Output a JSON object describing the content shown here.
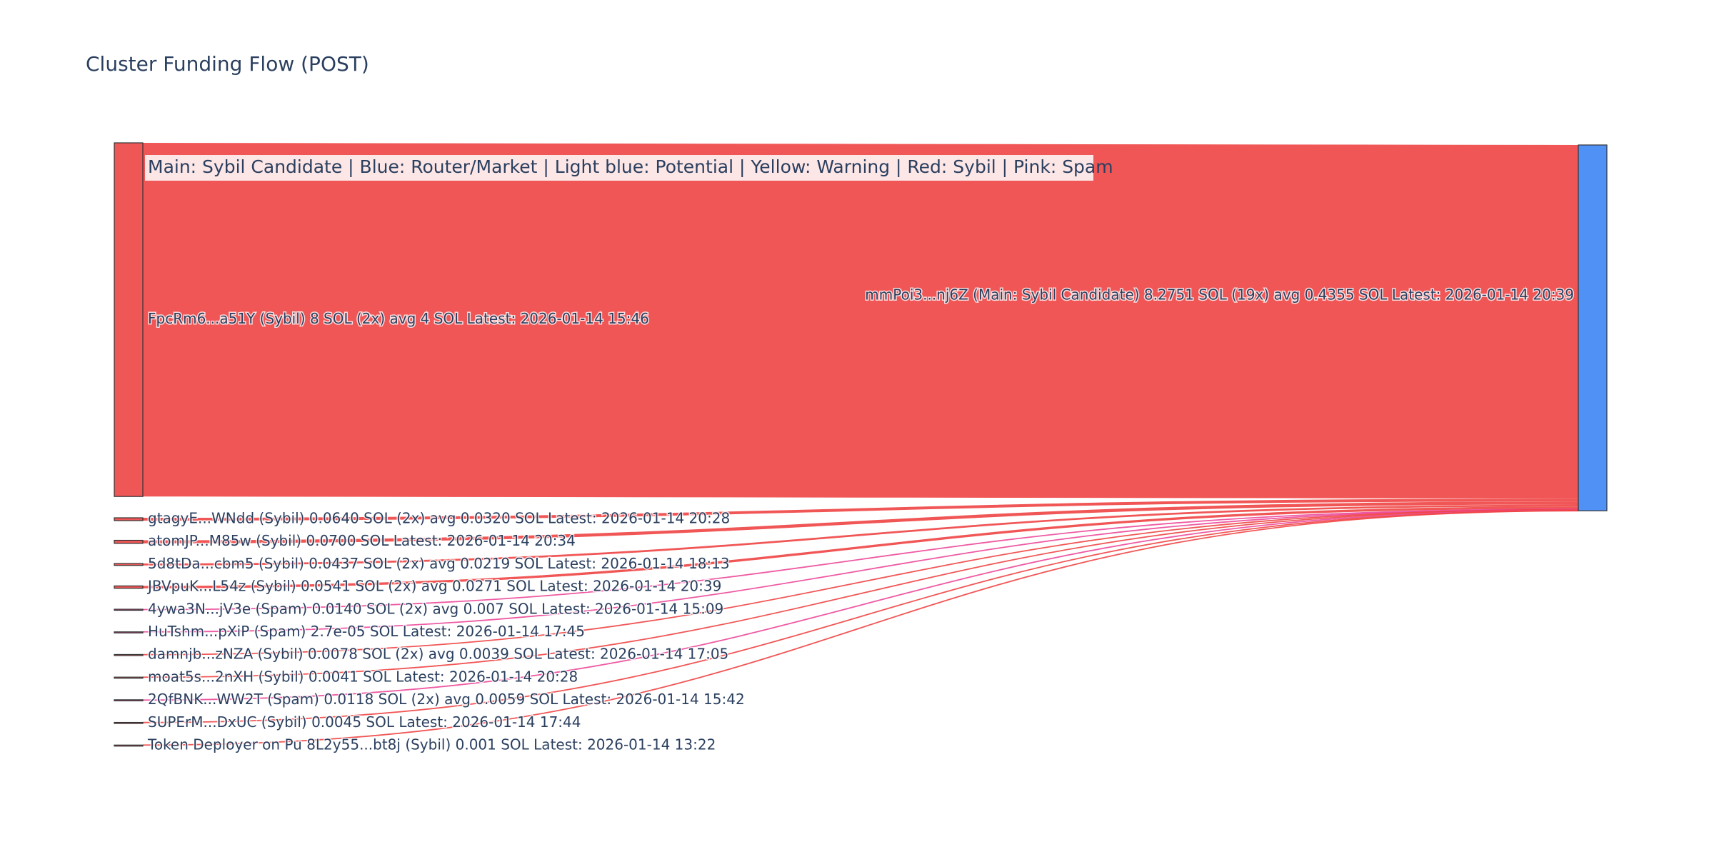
{
  "chart_data": {
    "type": "sankey",
    "title": "Cluster Funding Flow (POST)",
    "annotation": "Main: Sybil Candidate  |  Blue: Router/Market | Light blue: Potential | Yellow: Warning | Red: Sybil | Pink: Spam",
    "nodes": [
      {
        "label": "FpcRm6...a51Y (Sybil) 8 SOL (2x) avg 4 SOL Latest: 2026-01-14 15:46",
        "color": "#ef5656"
      },
      {
        "label": "gtagyE...WNdd (Sybil) 0.0640 SOL (2x) avg 0.0320 SOL Latest: 2026-01-14 20:28",
        "color": "#ef5656"
      },
      {
        "label": "atomJP...M85w (Sybil) 0.0700 SOL Latest: 2026-01-14 20:34",
        "color": "#ef5656"
      },
      {
        "label": "5d8tDa...cbm5 (Sybil) 0.0437 SOL (2x) avg 0.0219 SOL Latest: 2026-01-14 18:13",
        "color": "#ef5656"
      },
      {
        "label": "JBVpuK...L54z (Sybil) 0.0541 SOL (2x) avg 0.0271 SOL Latest: 2026-01-14 20:39",
        "color": "#ef5656"
      },
      {
        "label": "4ywa3N...jV3e (Spam) 0.0140 SOL (2x) avg 0.007 SOL Latest: 2026-01-14 15:09",
        "color": "#e8479b"
      },
      {
        "label": "HuTshm...pXiP (Spam) 2.7e-05 SOL Latest: 2026-01-14 17:45",
        "color": "#e8479b"
      },
      {
        "label": "damnjb...zNZA (Sybil) 0.0078 SOL (2x) avg 0.0039 SOL Latest: 2026-01-14 17:05",
        "color": "#ef5656"
      },
      {
        "label": "moat5s...2nXH (Sybil) 0.0041 SOL Latest: 2026-01-14 20:28",
        "color": "#ef5656"
      },
      {
        "label": "2QfBNK...WW2T (Spam) 0.0118 SOL (2x) avg 0.0059 SOL Latest: 2026-01-14 15:42",
        "color": "#e8479b"
      },
      {
        "label": "SUPErM...DxUC (Sybil) 0.0045 SOL Latest: 2026-01-14 17:44",
        "color": "#ef5656"
      },
      {
        "label": "Token Deployer on Pu 8L2y55...bt8j (Sybil) 0.001 SOL Latest: 2026-01-14 13:22",
        "color": "#ef5656"
      },
      {
        "label": "mmPoi3...nj6Z (Main: Sybil Candidate) 8.2751 SOL (19x) avg 0.4355 SOL Latest: 2026-01-14 20:39",
        "color": "#5091f5"
      }
    ],
    "links": [
      {
        "source": 0,
        "target": 12,
        "value": 8,
        "color": "#ef4444"
      },
      {
        "source": 1,
        "target": 12,
        "value": 0.064,
        "color": "#ef4444"
      },
      {
        "source": 2,
        "target": 12,
        "value": 0.07,
        "color": "#ef4444"
      },
      {
        "source": 3,
        "target": 12,
        "value": 0.0437,
        "color": "#ef4444"
      },
      {
        "source": 4,
        "target": 12,
        "value": 0.0541,
        "color": "#ef4444"
      },
      {
        "source": 5,
        "target": 12,
        "value": 0.014,
        "color": "#ec4899"
      },
      {
        "source": 6,
        "target": 12,
        "value": 2.7e-05,
        "color": "#ec4899"
      },
      {
        "source": 7,
        "target": 12,
        "value": 0.0078,
        "color": "#ef4444"
      },
      {
        "source": 8,
        "target": 12,
        "value": 0.0041,
        "color": "#ef4444"
      },
      {
        "source": 9,
        "target": 12,
        "value": 0.0118,
        "color": "#ec4899"
      },
      {
        "source": 10,
        "target": 12,
        "value": 0.0045,
        "color": "#ef4444"
      },
      {
        "source": 11,
        "target": 12,
        "value": 0.001,
        "color": "#ef4444"
      }
    ]
  }
}
